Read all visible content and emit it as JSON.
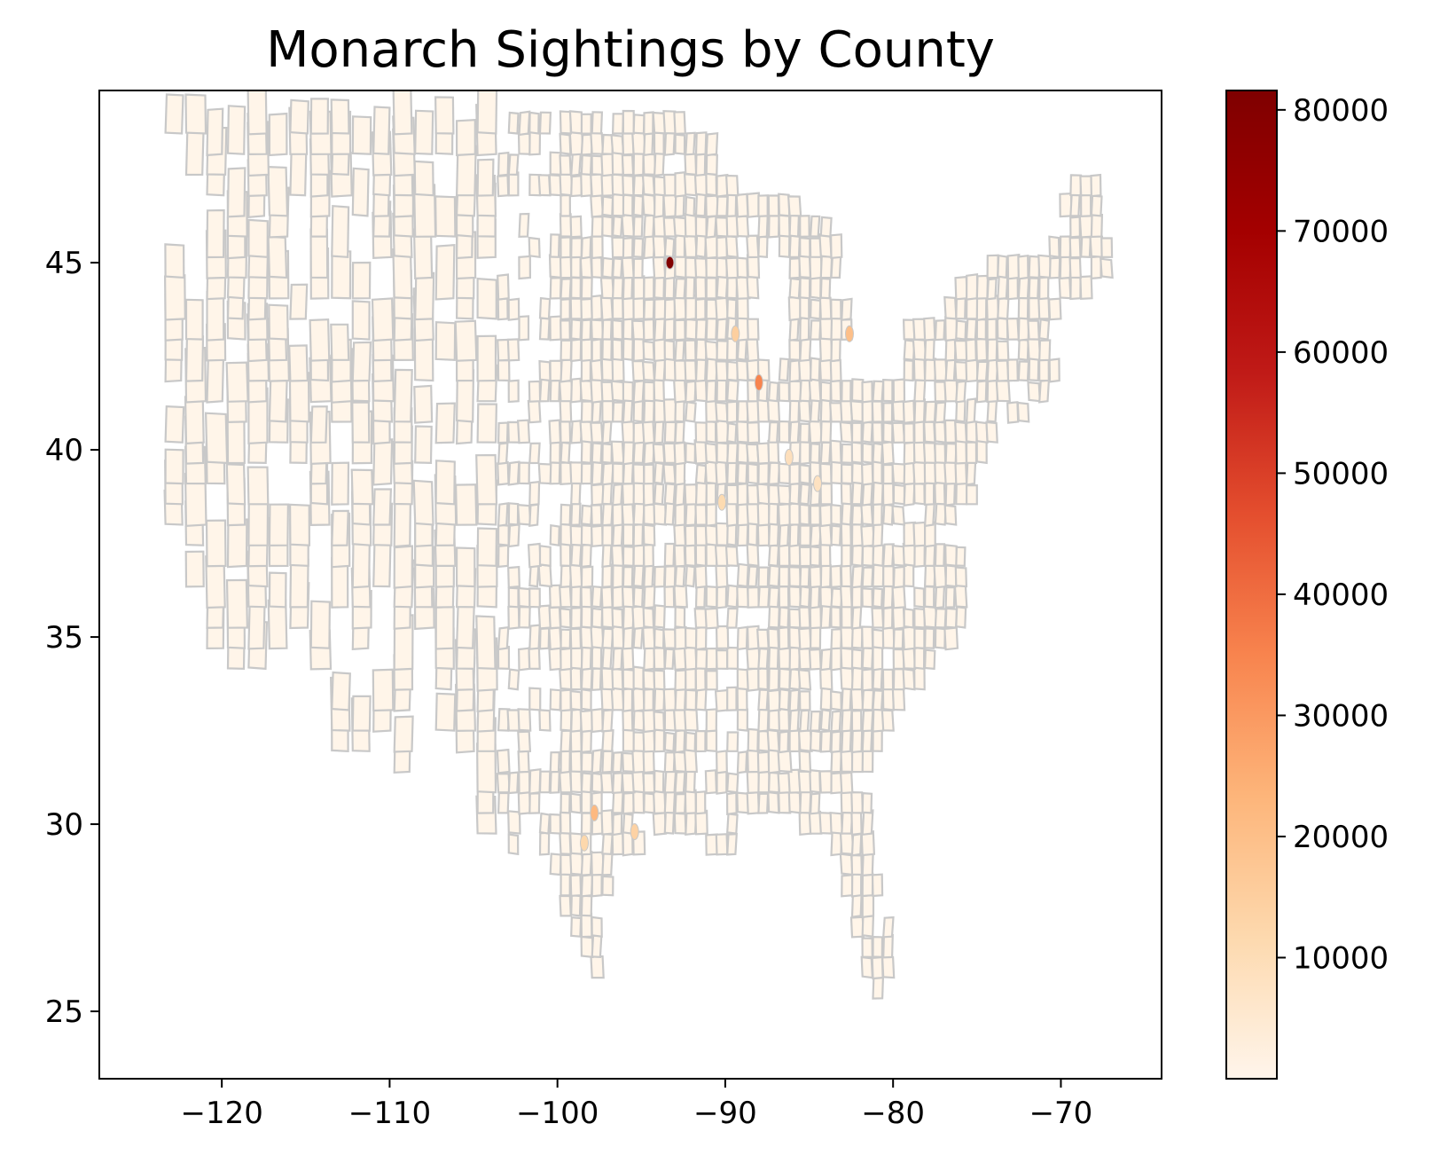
{
  "title": "Monarch Sightings by County",
  "colors": {
    "county_edge": "#c8c8c8",
    "county_fill_low": "#fff5e9",
    "axis": "#000000",
    "colormap": [
      "#fff5eb",
      "#fdd9ae",
      "#fdb57a",
      "#f8844e",
      "#e44e2e",
      "#c01a17",
      "#a40000",
      "#7f0000"
    ]
  },
  "chart_data": {
    "type": "choropleth",
    "title": "Monarch Sightings by County",
    "xlabel": "",
    "ylabel": "",
    "x_ticks": [
      -120,
      -110,
      -100,
      -90,
      -80,
      -70
    ],
    "x_tick_labels": [
      "−120",
      "−110",
      "−100",
      "−90",
      "−80",
      "−70"
    ],
    "y_ticks": [
      25,
      30,
      35,
      40,
      45
    ],
    "y_tick_labels": [
      "25",
      "30",
      "35",
      "40",
      "45"
    ],
    "xlim": [
      -127.3,
      -64.0
    ],
    "ylim": [
      23.2,
      49.6
    ],
    "colorbar": {
      "cmap": "OrRd",
      "range": [
        0,
        81600
      ],
      "ticks": [
        10000,
        20000,
        30000,
        40000,
        50000,
        60000,
        70000,
        80000
      ],
      "tick_labels": [
        "10000",
        "20000",
        "30000",
        "40000",
        "50000",
        "60000",
        "70000",
        "80000"
      ]
    },
    "hotspots": [
      {
        "lon": -93.3,
        "lat": 45.0,
        "value": 81000
      },
      {
        "lon": -88.0,
        "lat": 41.8,
        "value": 35000
      },
      {
        "lon": -97.8,
        "lat": 30.3,
        "value": 22000
      },
      {
        "lon": -82.6,
        "lat": 43.1,
        "value": 20000
      },
      {
        "lon": -89.4,
        "lat": 43.1,
        "value": 15000
      },
      {
        "lon": -95.4,
        "lat": 29.8,
        "value": 14000
      },
      {
        "lon": -98.4,
        "lat": 29.5,
        "value": 12000
      },
      {
        "lon": -90.2,
        "lat": 38.6,
        "value": 11000
      },
      {
        "lon": -86.2,
        "lat": 39.8,
        "value": 9000
      },
      {
        "lon": -84.5,
        "lat": 39.1,
        "value": 8000
      }
    ]
  }
}
